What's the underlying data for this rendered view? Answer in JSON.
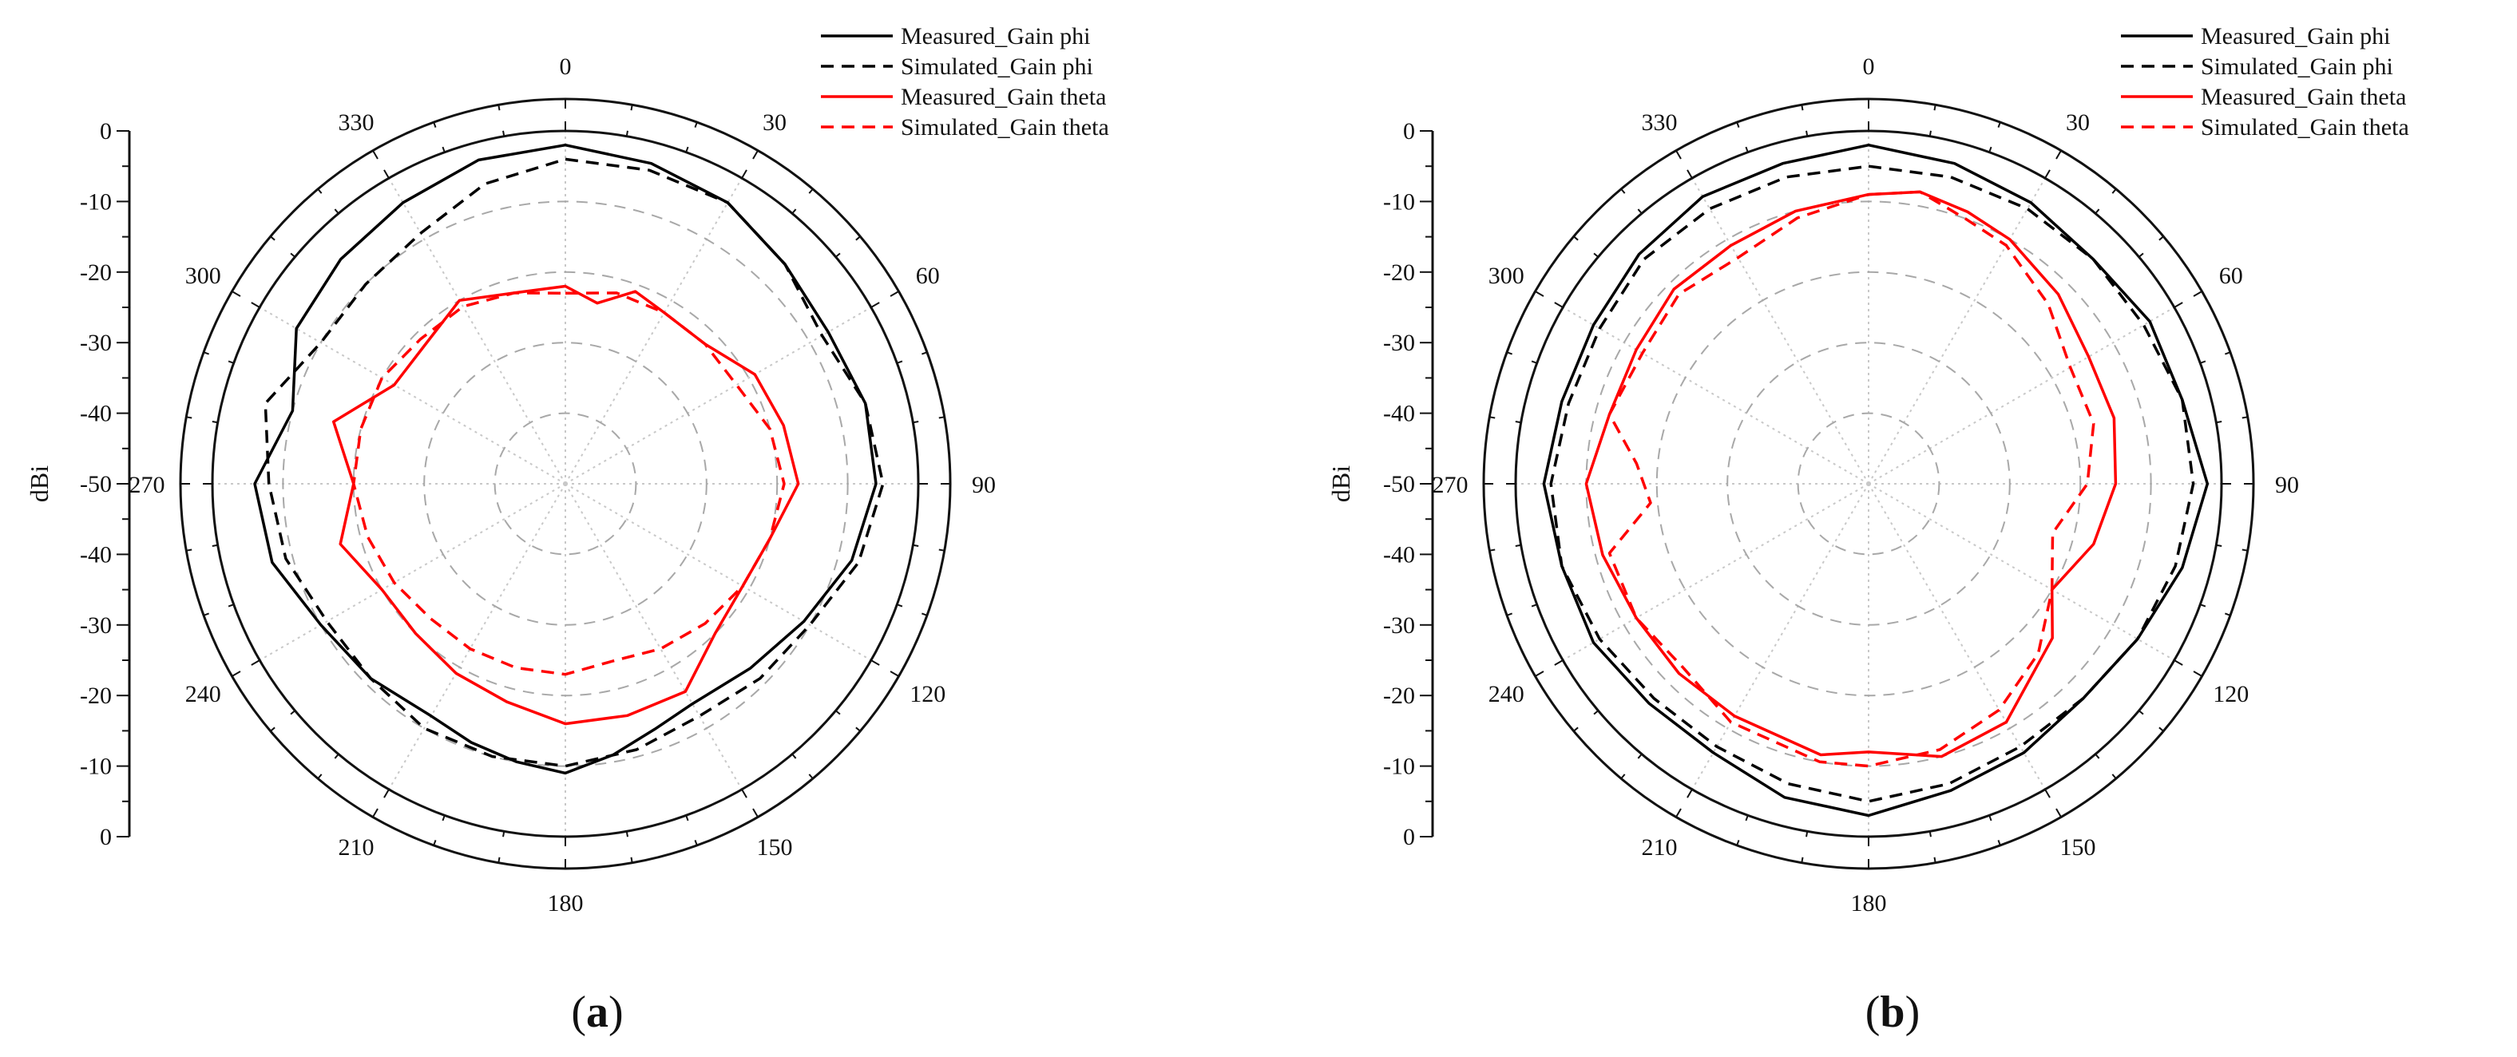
{
  "figure": {
    "panels": [
      {
        "label_open": "(",
        "label_letter": "a",
        "label_close": ")"
      },
      {
        "label_open": "(",
        "label_letter": "b",
        "label_close": ")"
      }
    ]
  },
  "chart_data": [
    {
      "type": "polar-line",
      "panel": "a",
      "ylabel": "dBi",
      "radial_range": [
        -50,
        0
      ],
      "radial_ticks": [
        0,
        -10,
        -20,
        -30,
        -40,
        -50
      ],
      "radial_grid_levels": [
        -10,
        -20,
        -30,
        -40
      ],
      "axis_tick_labels": [
        "0",
        "-10",
        "-20",
        "-30",
        "-40",
        "-50",
        "-40",
        "-30",
        "-20",
        "-10",
        "0"
      ],
      "angle_labels": [
        "0",
        "30",
        "60",
        "90",
        "120",
        "150",
        "180",
        "210",
        "240",
        "270",
        "300",
        "330"
      ],
      "legend_position": "top-right",
      "series": [
        {
          "name": "Measured_Gain phi",
          "color": "#000000",
          "style": "solid",
          "angles": [
            0,
            15,
            30,
            45,
            60,
            75,
            90,
            105,
            120,
            135,
            150,
            160,
            170,
            180,
            190,
            200,
            210,
            225,
            240,
            255,
            270,
            285,
            300,
            315,
            330,
            345
          ],
          "values": [
            -2,
            -3,
            -4,
            -6,
            -7,
            -6,
            -6,
            -8,
            -11,
            -13,
            -14,
            -13,
            -11,
            -9,
            -10,
            -11,
            -12,
            -11,
            -10,
            -7,
            -6,
            -10,
            -6,
            -5,
            -4,
            -2.5
          ]
        },
        {
          "name": "Simulated_Gain phi",
          "color": "#000000",
          "style": "dashed",
          "angles": [
            0,
            15,
            30,
            45,
            60,
            75,
            90,
            105,
            120,
            135,
            150,
            165,
            180,
            195,
            210,
            225,
            240,
            255,
            270,
            285,
            300,
            315,
            330,
            345
          ],
          "values": [
            -4,
            -4,
            -4,
            -6,
            -8,
            -6,
            -5,
            -7,
            -10,
            -11,
            -12,
            -11,
            -10,
            -10,
            -10,
            -11,
            -11,
            -9,
            -8,
            -6,
            -10,
            -10,
            -9,
            -6
          ]
        },
        {
          "name": "Measured_Gain theta",
          "color": "#ff0000",
          "style": "solid",
          "angles": [
            0,
            10,
            20,
            30,
            45,
            60,
            75,
            90,
            105,
            120,
            135,
            150,
            165,
            180,
            195,
            210,
            225,
            240,
            255,
            270,
            285,
            300,
            315,
            330,
            345
          ],
          "values": [
            -22,
            -24,
            -21,
            -22,
            -22,
            -19,
            -18,
            -17,
            -20,
            -21,
            -20,
            -16,
            -16,
            -16,
            -18,
            -19,
            -20,
            -20,
            -17,
            -20,
            -16,
            -22,
            -22,
            -20,
            -22
          ]
        },
        {
          "name": "Simulated_Gain theta",
          "color": "#ff0000",
          "style": "dashed",
          "angles": [
            0,
            15,
            30,
            45,
            60,
            75,
            90,
            105,
            120,
            135,
            150,
            165,
            180,
            195,
            210,
            225,
            240,
            255,
            270,
            285,
            300,
            315,
            330,
            345
          ],
          "values": [
            -23,
            -22,
            -22,
            -22,
            -22,
            -20,
            -19,
            -20,
            -21,
            -22,
            -23,
            -24,
            -23,
            -23,
            -23,
            -23,
            -22,
            -21,
            -20,
            -20,
            -20,
            -21,
            -21,
            -22
          ]
        }
      ]
    },
    {
      "type": "polar-line",
      "panel": "b",
      "ylabel": "dBi",
      "radial_range": [
        -50,
        0
      ],
      "radial_ticks": [
        0,
        -10,
        -20,
        -30,
        -40,
        -50
      ],
      "radial_grid_levels": [
        -10,
        -20,
        -30,
        -40
      ],
      "axis_tick_labels": [
        "0",
        "-10",
        "-20",
        "-30",
        "-40",
        "-50",
        "-40",
        "-30",
        "-20",
        "-10",
        "0"
      ],
      "angle_labels": [
        "0",
        "30",
        "60",
        "90",
        "120",
        "150",
        "180",
        "210",
        "240",
        "270",
        "300",
        "330"
      ],
      "legend_position": "top-right",
      "series": [
        {
          "name": "Measured_Gain phi",
          "color": "#000000",
          "style": "solid",
          "angles": [
            0,
            15,
            30,
            45,
            60,
            75,
            90,
            105,
            120,
            135,
            150,
            165,
            180,
            195,
            210,
            225,
            240,
            255,
            270,
            285,
            300,
            315,
            330,
            345
          ],
          "values": [
            -2,
            -3,
            -4,
            -5,
            -4,
            -4,
            -2,
            -4,
            -6,
            -7,
            -6,
            -5,
            -3,
            -4,
            -6,
            -6,
            -5,
            -5,
            -4,
            -5,
            -5,
            -4,
            -3,
            -3
          ]
        },
        {
          "name": "Simulated_Gain phi",
          "color": "#000000",
          "style": "dashed",
          "angles": [
            0,
            15,
            30,
            45,
            60,
            75,
            90,
            105,
            120,
            135,
            150,
            165,
            180,
            195,
            210,
            225,
            240,
            255,
            270,
            285,
            300,
            315,
            330,
            345
          ],
          "values": [
            -5,
            -5,
            -5,
            -5,
            -5,
            -4,
            -4,
            -5,
            -6,
            -7,
            -7,
            -6,
            -5,
            -6,
            -7,
            -7,
            -6,
            -5,
            -5,
            -6,
            -6,
            -5,
            -5,
            -5
          ]
        },
        {
          "name": "Measured_Gain theta",
          "color": "#ff0000",
          "style": "solid",
          "angles": [
            0,
            10,
            20,
            30,
            45,
            60,
            75,
            90,
            105,
            120,
            130,
            150,
            165,
            180,
            190,
            210,
            225,
            240,
            255,
            270,
            285,
            300,
            315,
            330,
            345
          ],
          "values": [
            -9,
            -8,
            -9,
            -10,
            -12,
            -14,
            -14,
            -15,
            -17,
            -20,
            -16,
            -11,
            -10,
            -12,
            -11,
            -12,
            -12,
            -12,
            -11,
            -10,
            -12,
            -12,
            -11,
            -11,
            -10
          ]
        },
        {
          "name": "Simulated_Gain theta",
          "color": "#ff0000",
          "style": "dashed",
          "angles": [
            0,
            10,
            20,
            30,
            45,
            60,
            75,
            90,
            105,
            120,
            135,
            150,
            165,
            180,
            190,
            210,
            225,
            240,
            255,
            265,
            275,
            285,
            300,
            315,
            330,
            345
          ],
          "values": [
            -9,
            -8,
            -10,
            -11,
            -14,
            -17,
            -17,
            -19,
            -23,
            -20,
            -16,
            -13,
            -11,
            -10,
            -10,
            -11,
            -13,
            -12,
            -12,
            -19,
            -17,
            -12,
            -13,
            -12,
            -13,
            -11
          ]
        }
      ]
    }
  ]
}
